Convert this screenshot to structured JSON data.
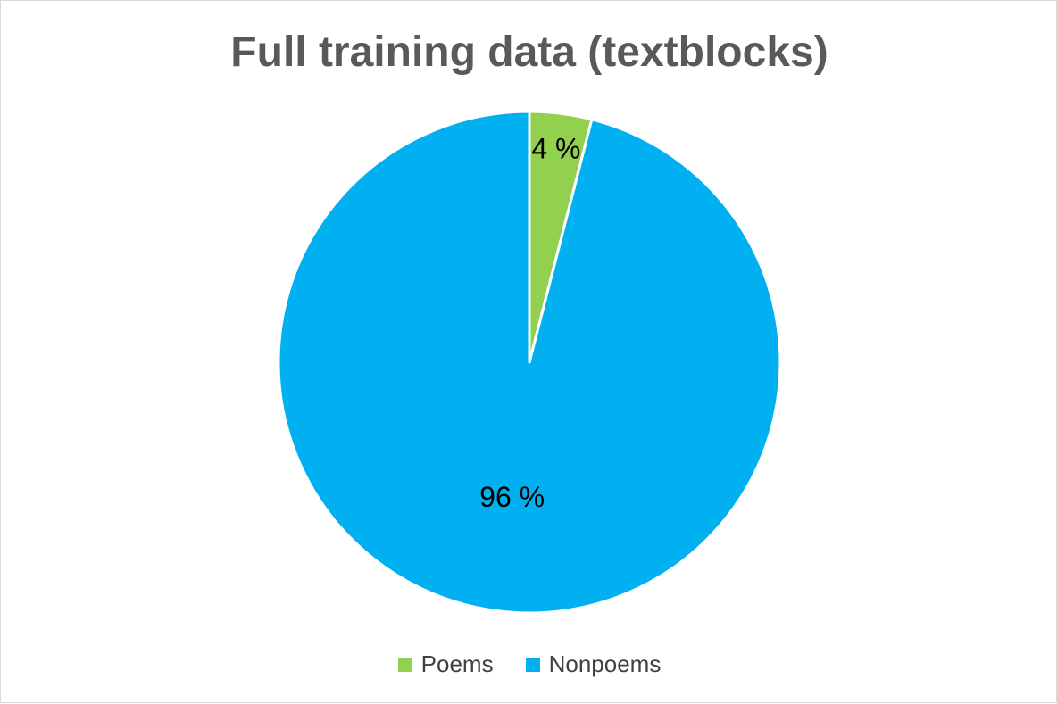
{
  "chart_data": {
    "type": "pie",
    "title": "Full training data (textblocks)",
    "slices": [
      {
        "name": "Poems",
        "value": 4,
        "label": "4 %",
        "color": "#92d050"
      },
      {
        "name": "Nonpoems",
        "value": 96,
        "label": "96 %",
        "color": "#00b0f0"
      }
    ],
    "legend_placement": "bottom"
  }
}
